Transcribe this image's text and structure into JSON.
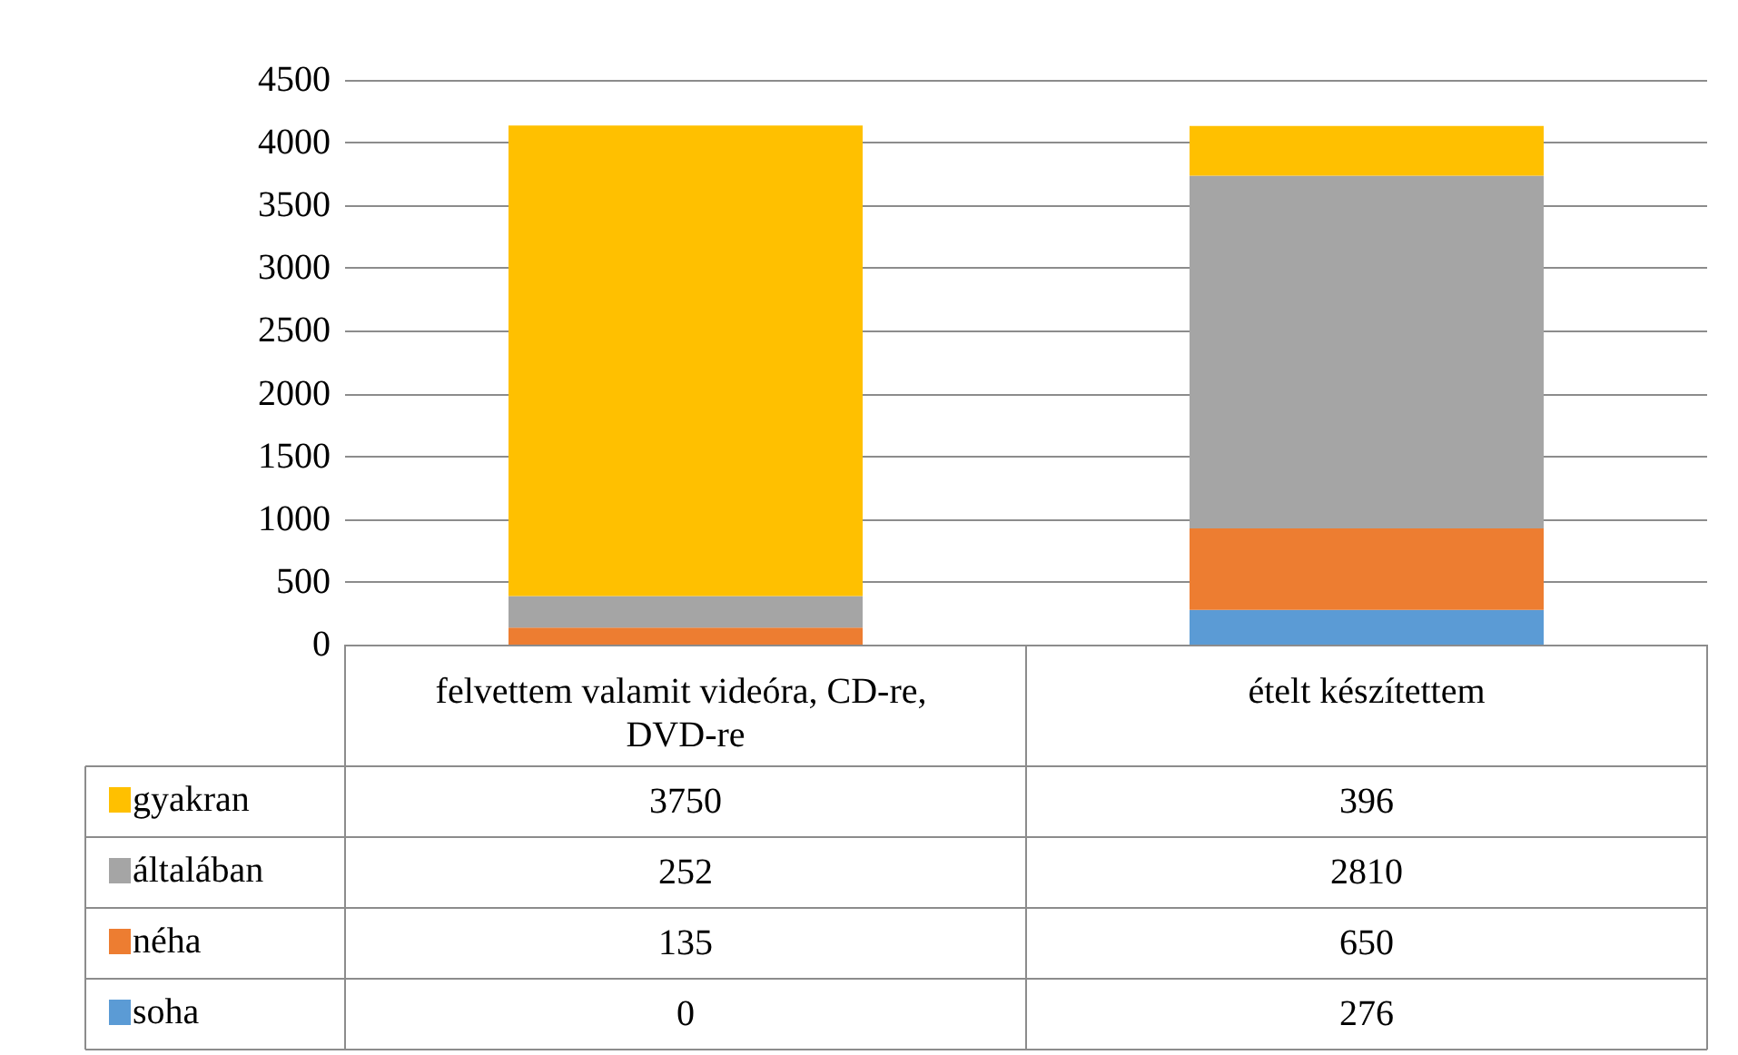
{
  "chart_data": {
    "type": "bar",
    "stacked": true,
    "categories": [
      "felvettem valamit videóra, CD-re, DVD-re",
      "ételt készítettem"
    ],
    "series": [
      {
        "name": "soha",
        "color": "#5b9bd5",
        "values": [
          0,
          276
        ]
      },
      {
        "name": "néha",
        "color": "#ed7d31",
        "values": [
          135,
          650
        ]
      },
      {
        "name": "általában",
        "color": "#a5a5a5",
        "values": [
          252,
          2810
        ]
      },
      {
        "name": "gyakran",
        "color": "#ffc000",
        "values": [
          3750,
          396
        ]
      }
    ],
    "ylim": [
      0,
      4500
    ],
    "yticks": [
      0,
      500,
      1000,
      1500,
      2000,
      2500,
      3000,
      3500,
      4000,
      4500
    ],
    "grid": "y",
    "legend": "bottom",
    "data_labels": true
  }
}
